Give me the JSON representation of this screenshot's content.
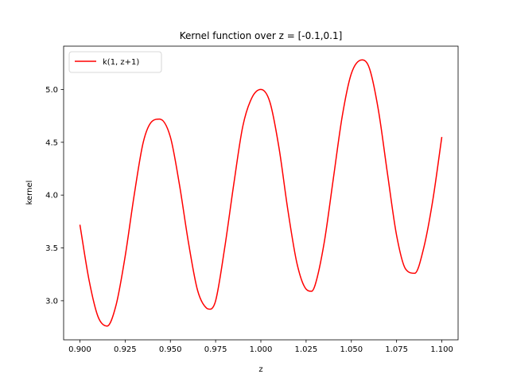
{
  "chart_data": {
    "type": "line",
    "title": "Kernel function over z = [-0.1,0.1]",
    "xlabel": "z",
    "ylabel": "kernel",
    "xlim": [
      0.891,
      1.109
    ],
    "ylim": [
      2.63,
      5.41
    ],
    "grid": false,
    "legend_position": "upper-left",
    "x_ticks": [
      0.9,
      0.925,
      0.95,
      0.975,
      1.0,
      1.025,
      1.05,
      1.075,
      1.1
    ],
    "x_tick_labels": [
      "0.900",
      "0.925",
      "0.950",
      "0.975",
      "1.000",
      "1.025",
      "1.050",
      "1.075",
      "1.100"
    ],
    "y_ticks": [
      3.0,
      3.5,
      4.0,
      4.5,
      5.0
    ],
    "y_tick_labels": [
      "3.0",
      "3.5",
      "4.0",
      "4.5",
      "5.0"
    ],
    "series": [
      {
        "name": "k(1, z+1)",
        "color": "#ff0000",
        "x": [
          0.9,
          0.905,
          0.91,
          0.915,
          0.92,
          0.925,
          0.93,
          0.935,
          0.94,
          0.944,
          0.95,
          0.955,
          0.96,
          0.965,
          0.97,
          0.972,
          0.975,
          0.98,
          0.985,
          0.99,
          0.995,
          1.0,
          1.005,
          1.01,
          1.015,
          1.02,
          1.025,
          1.028,
          1.03,
          1.035,
          1.04,
          1.045,
          1.05,
          1.056,
          1.06,
          1.065,
          1.07,
          1.075,
          1.08,
          1.085,
          1.09,
          1.095,
          1.1
        ],
        "y": [
          3.72,
          3.2,
          2.85,
          2.76,
          2.96,
          3.42,
          4.0,
          4.5,
          4.7,
          4.72,
          4.55,
          4.1,
          3.55,
          3.1,
          2.93,
          2.92,
          3.0,
          3.5,
          4.1,
          4.65,
          4.92,
          5.0,
          4.88,
          4.45,
          3.85,
          3.35,
          3.11,
          3.09,
          3.15,
          3.55,
          4.15,
          4.75,
          5.15,
          5.28,
          5.2,
          4.8,
          4.2,
          3.62,
          3.3,
          3.26,
          3.5,
          3.95,
          4.55
        ]
      }
    ]
  }
}
